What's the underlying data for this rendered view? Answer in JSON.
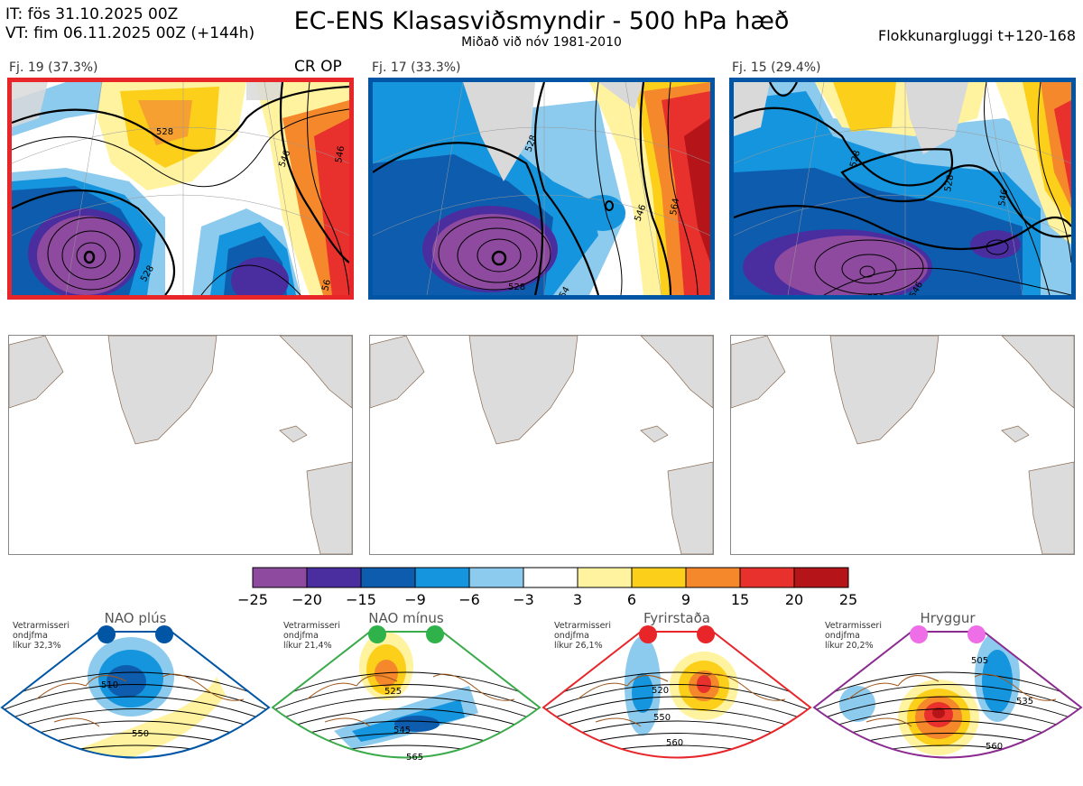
{
  "header": {
    "it": "IT: fös 31.10.2025 00Z",
    "vt": "VT: fim 06.11.2025 00Z  (+144h)",
    "title": "EC-ENS Klasasviðsmyndir - 500 hPa hæð",
    "subtitle": "Miðað við nóv 1981-2010",
    "window": "Flokkunargluggi t+120-168"
  },
  "clusters": [
    {
      "label": "Fj. 19 (37.3%)",
      "tag": "CR OP",
      "border_color": "#e8262a",
      "contours": [
        "528",
        "546",
        "546",
        "528",
        "56"
      ]
    },
    {
      "label": "Fj. 17 (33.3%)",
      "tag": "",
      "border_color": "#0055a5",
      "contours": [
        "528",
        "546",
        "564",
        "528",
        "54"
      ]
    },
    {
      "label": "Fj. 15 (29.4%)",
      "tag": "",
      "border_color": "#0055a5",
      "contours": [
        "528",
        "528",
        "546",
        "528",
        "546"
      ]
    }
  ],
  "chart_data": {
    "type": "heatmap",
    "title": "EC-ENS Klasasviðsmyndir - 500 hPa hæð",
    "colorbar": {
      "ticks": [
        "−25",
        "−20",
        "−15",
        "−9",
        "−6",
        "−3",
        "3",
        "6",
        "9",
        "15",
        "20",
        "25"
      ],
      "colors": [
        "#8e4a9e",
        "#4a2ea0",
        "#0e5cae",
        "#1595dd",
        "#8ccbee",
        "#ffffff",
        "#fff3a0",
        "#fccf1a",
        "#f5882a",
        "#e8302d",
        "#b51418"
      ]
    },
    "cluster_shares_percent": [
      37.3,
      33.3,
      29.4
    ]
  },
  "regimes": [
    {
      "name": "NAO plús",
      "note": [
        "Vetrarmisseri",
        "ondjfma",
        "líkur 32,3%"
      ],
      "color": "#0055a5",
      "dot": "#0055a5",
      "contours": [
        "510",
        "550"
      ]
    },
    {
      "name": "NAO mínus",
      "note": [
        "Vetrarmisseri",
        "ondjfma",
        "líkur 21,4%"
      ],
      "color": "#3aaa4a",
      "dot": "#2fb24a",
      "contours": [
        "525",
        "545",
        "565"
      ]
    },
    {
      "name": "Fyrirstaða",
      "note": [
        "Vetrarmisseri",
        "ondjfma",
        "líkur 26,1%"
      ],
      "color": "#e8262a",
      "dot": "#e8262a",
      "contours": [
        "520",
        "550",
        "560"
      ]
    },
    {
      "name": "Hryggur",
      "note": [
        "Vetrarmisseri",
        "ondjfma",
        "líkur 20,2%"
      ],
      "color": "#8a2b8f",
      "dot": "#ee6ee8",
      "contours": [
        "505",
        "535",
        "560"
      ]
    }
  ]
}
